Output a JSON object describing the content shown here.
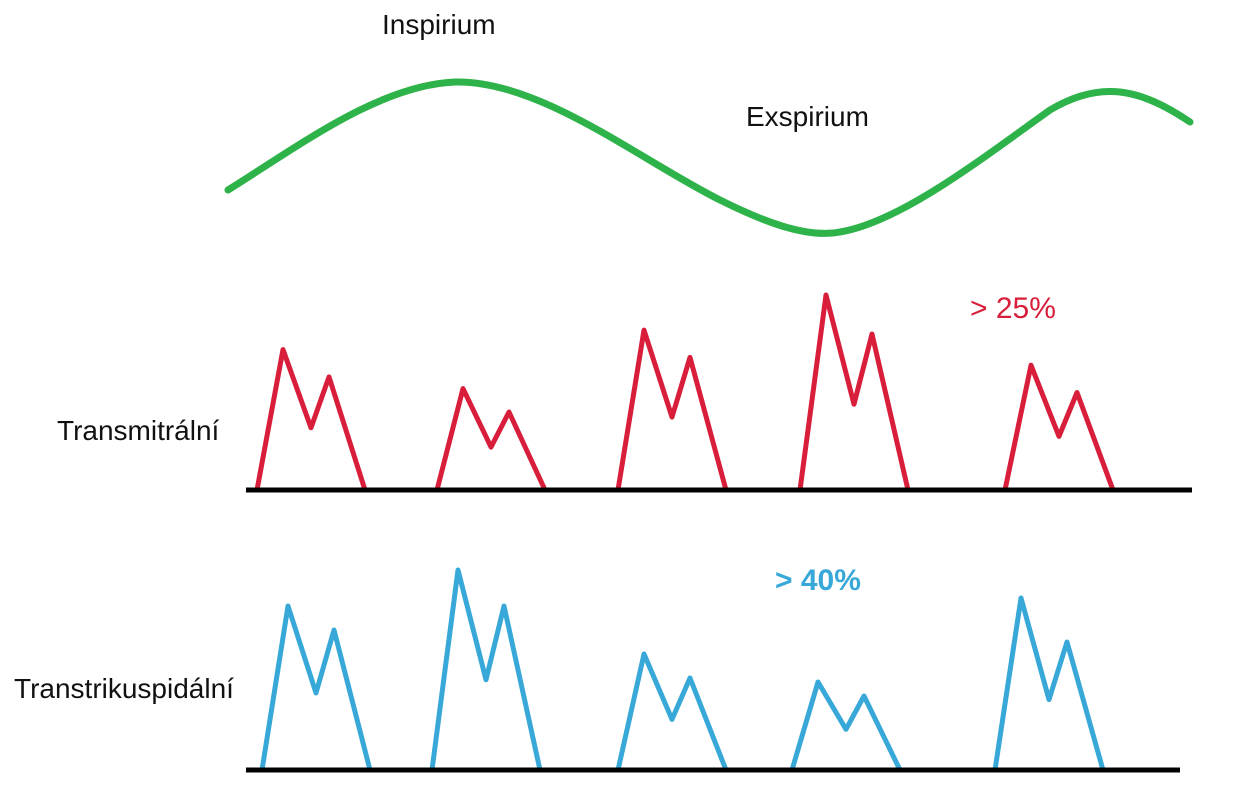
{
  "labels": {
    "inspirium": "Inspirium",
    "exspirium": "Exspirium",
    "transmitral": "Transmitrální",
    "transtricuspid": "Transtrikuspidální"
  },
  "annotations": {
    "mitral_variation": "> 25%",
    "tricuspid_variation": "> 40%"
  },
  "colors": {
    "respiration": "#2db34a",
    "mitral": "#d81e3a",
    "tricuspid": "#38a8d8",
    "baseline": "#000000"
  },
  "mitral_flow": {
    "relative_peaks": [
      {
        "e": 0.72,
        "a": 0.58
      },
      {
        "e": 0.52,
        "a": 0.4
      },
      {
        "e": 0.82,
        "a": 0.68
      },
      {
        "e": 1.0,
        "a": 0.8
      },
      {
        "e": 0.64,
        "a": 0.5
      }
    ]
  },
  "tricuspid_flow": {
    "relative_peaks": [
      {
        "e": 0.82,
        "a": 0.7
      },
      {
        "e": 1.0,
        "a": 0.82
      },
      {
        "e": 0.58,
        "a": 0.46
      },
      {
        "e": 0.44,
        "a": 0.37
      },
      {
        "e": 0.86,
        "a": 0.64
      }
    ]
  }
}
